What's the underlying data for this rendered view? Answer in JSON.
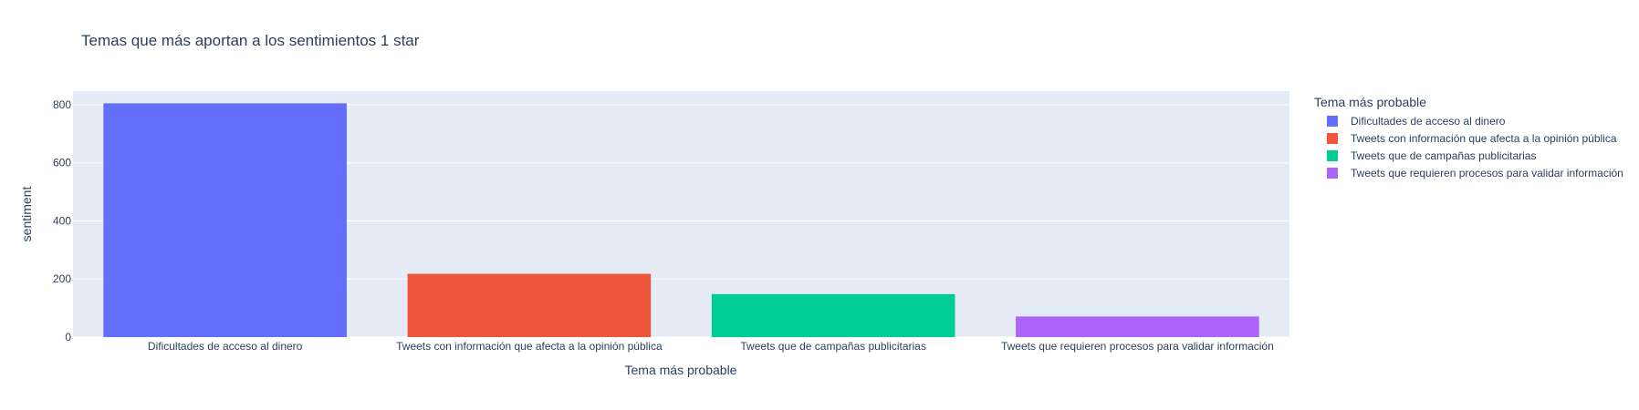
{
  "chart_data": {
    "type": "bar",
    "title": "Temas que más aportan a los sentimientos 1 star",
    "xlabel": "Tema más probable",
    "ylabel": "sentiment",
    "categories": [
      "Dificultades de acceso al dinero",
      "Tweets con información que afecta a la opinión pública",
      "Tweets que de campañas publicitarias",
      "Tweets que requieren procesos para validar información"
    ],
    "values": [
      805,
      218,
      148,
      71
    ],
    "colors": [
      "#636efa",
      "#ef553b",
      "#00cc96",
      "#ab63fa"
    ],
    "ylim": [
      0,
      847
    ],
    "yticks": [
      0,
      200,
      400,
      600,
      800
    ],
    "grid": true,
    "plot_background": "#e5ecf6",
    "legend": {
      "title": "Tema más probable",
      "placement": "right",
      "entries": [
        "Dificultades de acceso al dinero",
        "Tweets con información que afecta a la opinión pública",
        "Tweets que de campañas publicitarias",
        "Tweets que requieren procesos para validar información"
      ]
    }
  }
}
